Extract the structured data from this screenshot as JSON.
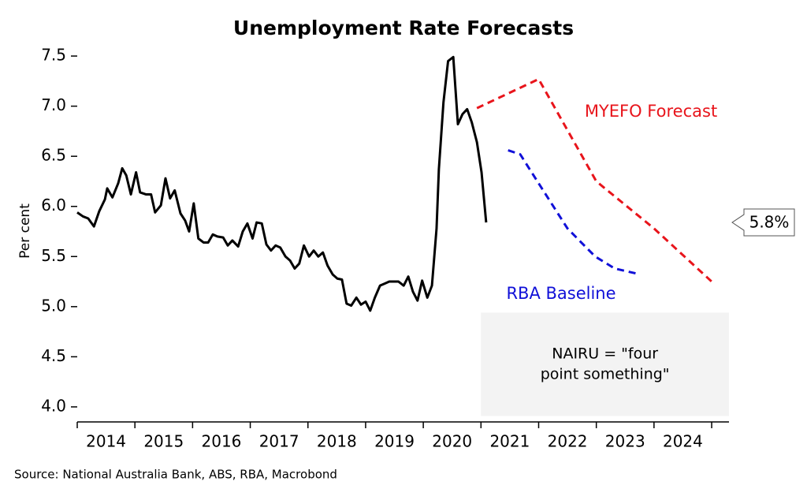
{
  "chart_data": {
    "type": "line",
    "title": "Unemployment Rate Forecasts",
    "ylabel": "Per cent",
    "source": "Source: National Australia Bank, ABS, RBA, Macrobond",
    "xlim": [
      2014,
      2025.3
    ],
    "ylim": [
      3.85,
      7.65
    ],
    "xticks": [
      2014,
      2015,
      2016,
      2017,
      2018,
      2019,
      2020,
      2021,
      2022,
      2023,
      2024,
      2025
    ],
    "xtick_labels": [
      {
        "value": 2014.5,
        "label": "2014"
      },
      {
        "value": 2015.5,
        "label": "2015"
      },
      {
        "value": 2016.5,
        "label": "2016"
      },
      {
        "value": 2017.5,
        "label": "2017"
      },
      {
        "value": 2018.5,
        "label": "2018"
      },
      {
        "value": 2019.5,
        "label": "2019"
      },
      {
        "value": 2020.5,
        "label": "2020"
      },
      {
        "value": 2021.5,
        "label": "2021"
      },
      {
        "value": 2022.5,
        "label": "2022"
      },
      {
        "value": 2023.5,
        "label": "2023"
      },
      {
        "value": 2024.5,
        "label": "2024"
      }
    ],
    "yticks": [
      {
        "value": 4,
        "label": "4.0"
      },
      4.5,
      {
        "value": 5,
        "label": "5.0"
      },
      5.5,
      {
        "value": 6,
        "label": "6.0"
      },
      6.5,
      {
        "value": 7,
        "label": "7.0"
      },
      7.5
    ],
    "series": [
      {
        "color": "#000000",
        "dashed": false,
        "x": [
          2014.0,
          2014.1,
          2014.19,
          2014.29,
          2014.38,
          2014.48,
          2014.52,
          2014.61,
          2014.71,
          2014.78,
          2014.85,
          2014.93,
          2015.02,
          2015.09,
          2015.19,
          2015.28,
          2015.35,
          2015.45,
          2015.53,
          2015.61,
          2015.69,
          2015.79,
          2015.87,
          2015.94,
          2016.02,
          2016.1,
          2016.19,
          2016.27,
          2016.35,
          2016.43,
          2016.53,
          2016.61,
          2016.69,
          2016.79,
          2016.87,
          2016.95,
          2017.04,
          2017.11,
          2017.2,
          2017.28,
          2017.36,
          2017.44,
          2017.52,
          2017.61,
          2017.69,
          2017.77,
          2017.85,
          2017.93,
          2018.02,
          2018.1,
          2018.18,
          2018.26,
          2018.34,
          2018.43,
          2018.51,
          2018.59,
          2018.67,
          2018.75,
          2018.84,
          2018.92,
          2019.0,
          2019.08,
          2019.16,
          2019.25,
          2019.33,
          2019.41,
          2019.49,
          2019.57,
          2019.66,
          2019.74,
          2019.82,
          2019.9,
          2019.98,
          2020.07,
          2020.15,
          2020.23,
          2020.27,
          2020.35,
          2020.43,
          2020.52,
          2020.6,
          2020.68,
          2020.76,
          2020.84,
          2020.93,
          2021.01,
          2021.09
        ],
        "values": [
          5.94,
          5.9,
          5.88,
          5.8,
          5.95,
          6.07,
          6.18,
          6.09,
          6.23,
          6.38,
          6.31,
          6.12,
          6.34,
          6.14,
          6.12,
          6.12,
          5.94,
          6.01,
          6.28,
          6.08,
          6.16,
          5.93,
          5.86,
          5.75,
          6.03,
          5.68,
          5.64,
          5.64,
          5.72,
          5.7,
          5.69,
          5.61,
          5.66,
          5.6,
          5.75,
          5.83,
          5.68,
          5.84,
          5.83,
          5.62,
          5.56,
          5.61,
          5.59,
          5.5,
          5.46,
          5.38,
          5.43,
          5.61,
          5.5,
          5.56,
          5.5,
          5.54,
          5.41,
          5.32,
          5.28,
          5.27,
          5.03,
          5.01,
          5.09,
          5.02,
          5.05,
          4.96,
          5.09,
          5.21,
          5.23,
          5.25,
          5.25,
          5.25,
          5.21,
          5.3,
          5.15,
          5.06,
          5.26,
          5.09,
          5.21,
          5.78,
          6.37,
          7.04,
          7.45,
          7.49,
          6.82,
          6.92,
          6.97,
          6.84,
          6.64,
          6.34,
          5.84
        ]
      },
      {
        "name": "MYEFO Forecast",
        "color": "#e8141b",
        "dashed": true,
        "x": [
          2020.93,
          2022.0,
          2023.0,
          2024.0,
          2025.0
        ],
        "values": [
          6.98,
          7.27,
          6.25,
          5.78,
          5.25
        ]
      },
      {
        "name": "RBA Baseline",
        "color": "#1010d8",
        "dashed": true,
        "x": [
          2021.47,
          2021.68,
          2022.0,
          2022.5,
          2022.98,
          2023.32,
          2023.7
        ],
        "values": [
          6.56,
          6.52,
          6.23,
          5.78,
          5.5,
          5.38,
          5.33
        ]
      }
    ],
    "band": {
      "x0": 2021.0,
      "x1": 2025.3,
      "y0": 3.91,
      "y1": 4.94,
      "color": "#f3f3f3",
      "label": [
        "NAIRU = \"four",
        "point something\""
      ]
    },
    "callout": {
      "value": 5.84,
      "label": "5.8%"
    }
  }
}
